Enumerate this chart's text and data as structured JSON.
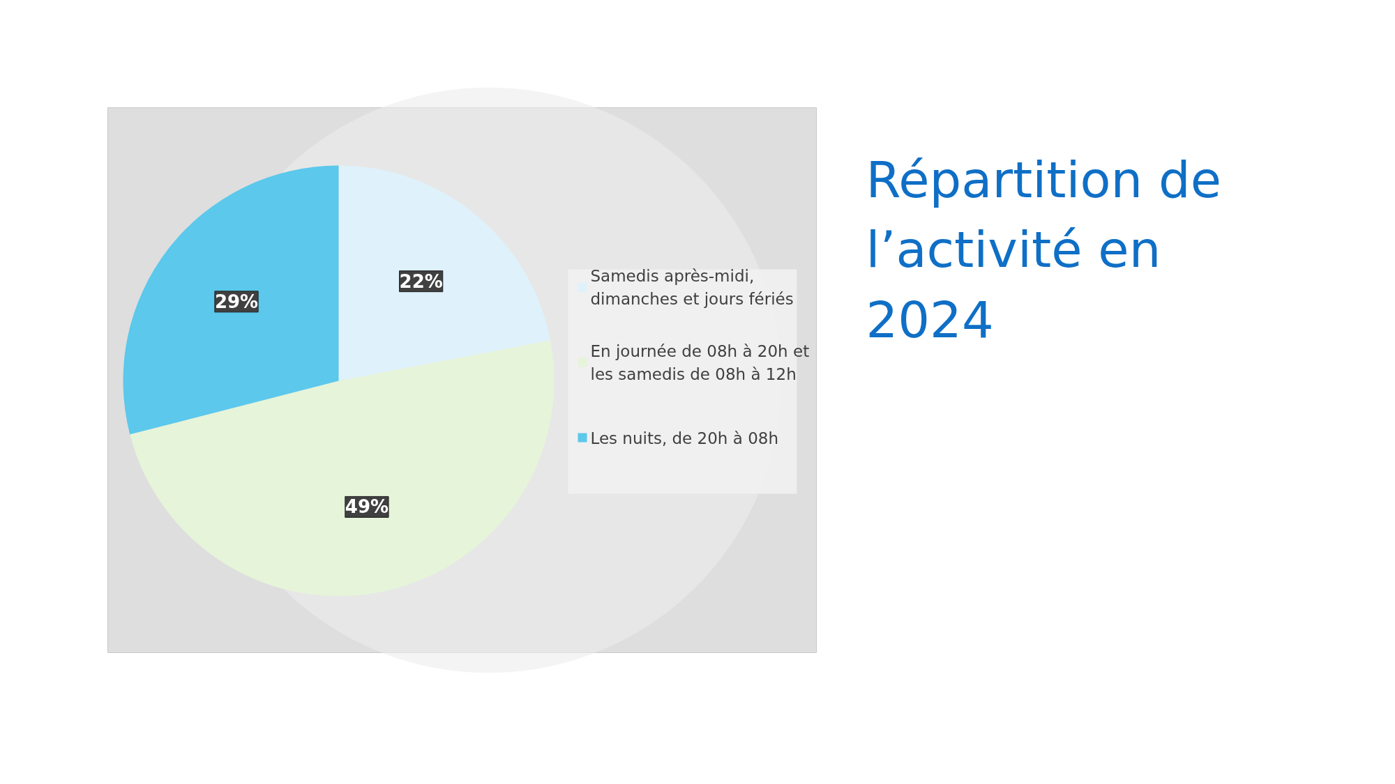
{
  "chart_data": {
    "type": "pie",
    "title": "Répartition de l’activité en 2024",
    "categories": [
      "Samedis après-midi, dimanches et jours fériés",
      "En journée de 08h à 20h et les samedis de 08h à 12h",
      "Les nuits, de 20h à 08h"
    ],
    "values": [
      22,
      49,
      29
    ],
    "colors": [
      "#dff1fa",
      "#e6f4da",
      "#5bc8ec"
    ],
    "value_labels": [
      "22%",
      "49%",
      "29%"
    ],
    "legend": "right"
  }
}
